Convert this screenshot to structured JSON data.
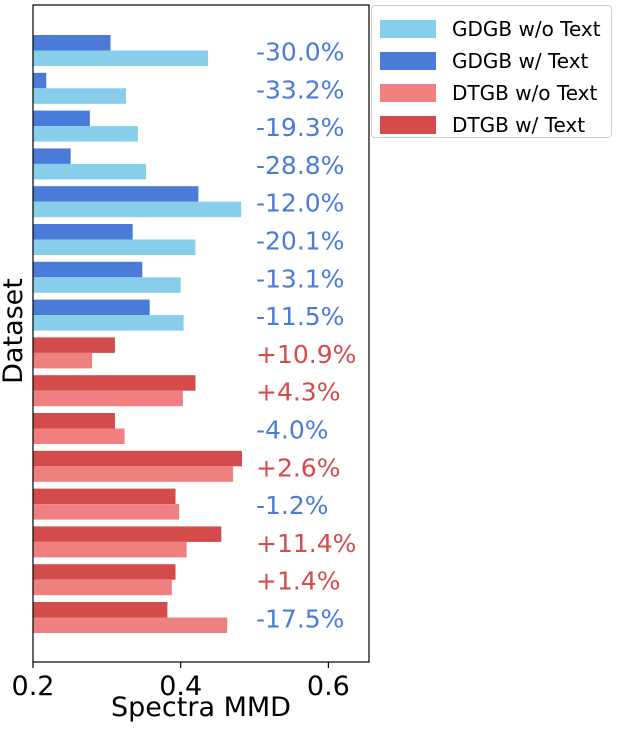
{
  "chart_data": {
    "type": "bar",
    "orientation": "horizontal",
    "xlabel": "Spectra MMD",
    "ylabel": "Dataset",
    "xlim": [
      0.2,
      0.655
    ],
    "xticks": [
      0.2,
      0.4,
      0.6
    ],
    "xtick_labels": [
      "0.2",
      "0.4",
      "0.6"
    ],
    "grid": false,
    "legend_position": "outside top-right",
    "colors": {
      "GDGB w/o Text": "#87CEEB",
      "GDGB w/ Text": "#4A7BD8",
      "DTGB w/o Text": "#F08080",
      "DTGB w/ Text": "#D44B4B",
      "negative_label": "#4A7BD8",
      "positive_label": "#D44B4B"
    },
    "legend": [
      "GDGB w/o Text",
      "GDGB w/ Text",
      "DTGB w/o Text",
      "DTGB w/ Text"
    ],
    "groups": [
      {
        "benchmark": "GDGB",
        "with_text": 0.305,
        "without_text": 0.437,
        "change": "-30.0%"
      },
      {
        "benchmark": "GDGB",
        "with_text": 0.218,
        "without_text": 0.326,
        "change": "-33.2%"
      },
      {
        "benchmark": "GDGB",
        "with_text": 0.277,
        "without_text": 0.342,
        "change": "-19.3%"
      },
      {
        "benchmark": "GDGB",
        "with_text": 0.251,
        "without_text": 0.353,
        "change": "-28.8%"
      },
      {
        "benchmark": "GDGB",
        "with_text": 0.424,
        "without_text": 0.482,
        "change": "-12.0%"
      },
      {
        "benchmark": "GDGB",
        "with_text": 0.335,
        "without_text": 0.42,
        "change": "-20.1%"
      },
      {
        "benchmark": "GDGB",
        "with_text": 0.348,
        "without_text": 0.4,
        "change": "-13.1%"
      },
      {
        "benchmark": "GDGB",
        "with_text": 0.358,
        "without_text": 0.404,
        "change": "-11.5%"
      },
      {
        "benchmark": "DTGB",
        "with_text": 0.311,
        "without_text": 0.28,
        "change": "+10.9%"
      },
      {
        "benchmark": "DTGB",
        "with_text": 0.42,
        "without_text": 0.403,
        "change": "+4.3%"
      },
      {
        "benchmark": "DTGB",
        "with_text": 0.311,
        "without_text": 0.324,
        "change": "-4.0%"
      },
      {
        "benchmark": "DTGB",
        "with_text": 0.483,
        "without_text": 0.471,
        "change": "+2.6%"
      },
      {
        "benchmark": "DTGB",
        "with_text": 0.393,
        "without_text": 0.398,
        "change": "-1.2%"
      },
      {
        "benchmark": "DTGB",
        "with_text": 0.455,
        "without_text": 0.408,
        "change": "+11.4%"
      },
      {
        "benchmark": "DTGB",
        "with_text": 0.393,
        "without_text": 0.388,
        "change": "+1.4%"
      },
      {
        "benchmark": "DTGB",
        "with_text": 0.382,
        "without_text": 0.463,
        "change": "-17.5%"
      }
    ]
  }
}
